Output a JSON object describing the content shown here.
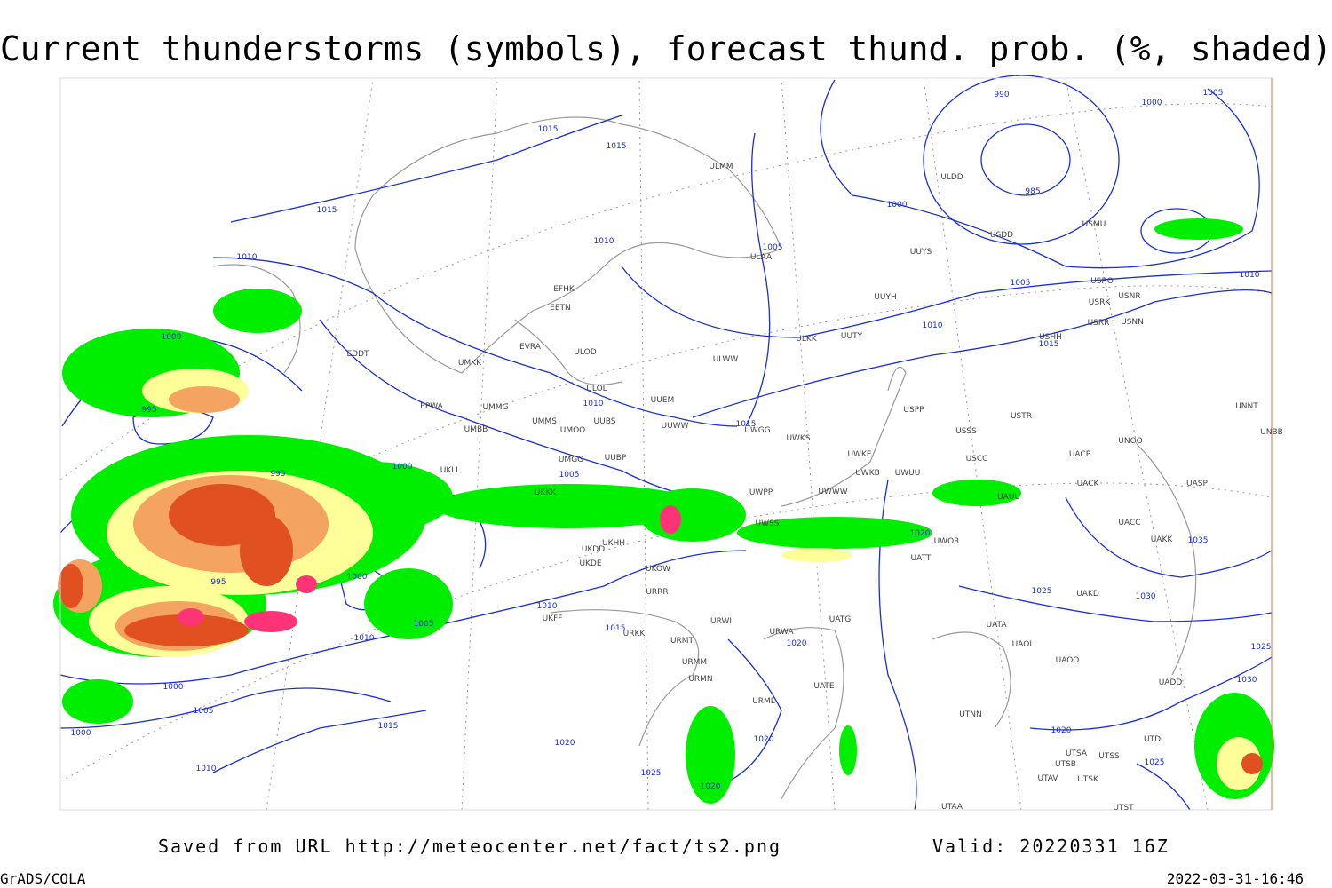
{
  "header": {
    "title": "Current thunderstorms (symbols), forecast thund. prob. (%, shaded)"
  },
  "isobar_labels": [
    1015,
    1015,
    1015,
    1010,
    1010,
    1005,
    990,
    985,
    1000,
    1000,
    1005,
    1005,
    1010,
    1010,
    1015,
    1000,
    995,
    1010,
    1015,
    995,
    1000,
    1005,
    995,
    1000,
    1010,
    1015,
    1005,
    1010,
    1000,
    1005,
    1000,
    1015,
    1010,
    1020,
    1025,
    1020,
    1020,
    1020,
    1020,
    1025,
    1030,
    1035,
    1020,
    1025,
    1025,
    1030
  ],
  "station_labels": [
    "ULMM",
    "ULDD",
    "USDD",
    "USMU",
    "UUYS",
    "ULAA",
    "EFHK",
    "EETN",
    "UUYH",
    "USRO",
    "USRK",
    "USNR",
    "USRR",
    "USNN",
    "USHH",
    "ULKK",
    "UUTY",
    "EVRA",
    "ULOD",
    "EDDT",
    "UMKK",
    "ULWW",
    "ULOL",
    "UUEM",
    "EPWA",
    "UMMG",
    "UMMS",
    "UMOO",
    "UUBS",
    "UUWW",
    "USPP",
    "USTR",
    "USSS",
    "UMBB",
    "UWGG",
    "UWKS",
    "UNBB",
    "UNNT",
    "UNOO",
    "UUBP",
    "UMGG",
    "UWKE",
    "UWKB",
    "UWUU",
    "USCC",
    "UACP",
    "UACK",
    "UASP",
    "UKLL",
    "UKKK",
    "UWPP",
    "UWWW",
    "UAUU",
    "UKHH",
    "UWSS",
    "UACC",
    "UAKK",
    "UKDD",
    "UKDE",
    "UWOR",
    "UATT",
    "UKOW",
    "URRR",
    "UAKD",
    "UKFF",
    "URKK",
    "URWI",
    "UATG",
    "URWA",
    "UATA",
    "UAOL",
    "UAOO",
    "URMT",
    "URMM",
    "URMN",
    "UATE",
    "UADD",
    "URML",
    "UTNN",
    "UTDL",
    "UTSA",
    "UTSS",
    "UTSB",
    "UTAV",
    "UTSK",
    "UTAA",
    "UTST"
  ],
  "footer": {
    "source": "Saved from URL http://meteocenter.net/fact/ts2.png",
    "valid": "Valid: 20220331 16Z"
  },
  "corner": {
    "left": "GrADS/COLA",
    "right": "2022-03-31-16:46"
  }
}
